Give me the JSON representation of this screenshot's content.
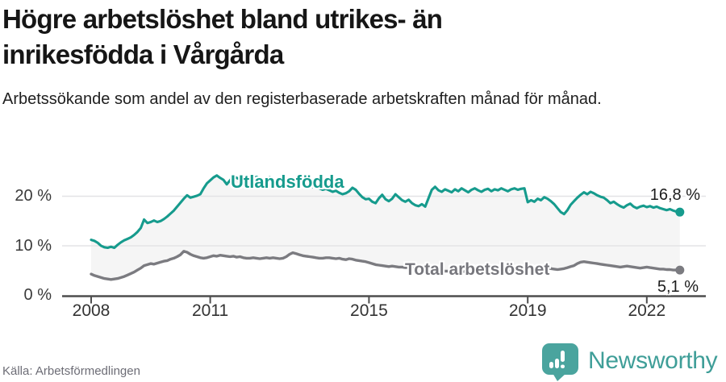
{
  "header": {
    "title_line1": "Högre arbetslöshet bland utrikes- än",
    "title_line2": "inrikesfödda i Vårgårda",
    "subtitle": "Arbetssökande som andel av den registerbaserade arbetskraften månad för månad."
  },
  "footer": {
    "source": "Källa: Arbetsförmedlingen",
    "brand": "Newsworthy"
  },
  "chart_data": {
    "type": "line",
    "title": "Högre arbetslöshet bland utrikes- än inrikesfödda i Vårgårda",
    "subtitle": "Arbetssökande som andel av den registerbaserade arbetskraften månad för månad.",
    "x_start": 2008,
    "x_interval": "month",
    "x_range": [
      "2008-01",
      "2022-11"
    ],
    "ylim": [
      0,
      26
    ],
    "grid": "horizontal",
    "legend_position": "inline-on-lines",
    "y_ticks": [
      {
        "value": 0,
        "label": "0 %"
      },
      {
        "value": 10,
        "label": "10 %"
      },
      {
        "value": 20,
        "label": "20 %"
      }
    ],
    "x_ticks": [
      {
        "value": 2008,
        "label": "2008"
      },
      {
        "value": 2011,
        "label": "2011"
      },
      {
        "value": 2015,
        "label": "2015"
      },
      {
        "value": 2019,
        "label": "2019"
      },
      {
        "value": 2022,
        "label": "2022"
      }
    ],
    "series": [
      {
        "name": "Utlandsfödda",
        "end_value_label": "16,8 %",
        "color": "#169b8d",
        "values": [
          11.2,
          11.0,
          10.6,
          10.0,
          9.7,
          9.6,
          9.8,
          9.6,
          10.2,
          10.7,
          11.1,
          11.4,
          11.7,
          12.2,
          12.8,
          13.6,
          15.3,
          14.6,
          14.8,
          15.1,
          14.8,
          15.0,
          15.4,
          15.9,
          16.5,
          17.1,
          17.9,
          18.7,
          19.5,
          20.2,
          19.7,
          19.9,
          20.1,
          20.4,
          21.6,
          22.6,
          23.2,
          23.8,
          24.2,
          23.7,
          23.3,
          22.4,
          23.2,
          24.0,
          23.7,
          23.4,
          23.6,
          23.3,
          23.4,
          23.6,
          23.9,
          23.5,
          23.2,
          23.6,
          23.8,
          23.5,
          23.1,
          22.8,
          23.0,
          23.2,
          23.0,
          22.7,
          22.9,
          22.5,
          22.2,
          22.4,
          22.0,
          21.8,
          21.9,
          21.6,
          21.3,
          21.5,
          21.2,
          20.9,
          21.1,
          20.7,
          20.4,
          20.6,
          21.0,
          21.7,
          21.3,
          20.5,
          19.8,
          19.4,
          19.5,
          18.9,
          18.6,
          19.6,
          20.3,
          19.4,
          19.0,
          19.5,
          20.4,
          19.8,
          19.2,
          18.9,
          19.3,
          18.6,
          18.2,
          18.0,
          18.4,
          17.9,
          19.6,
          21.3,
          21.9,
          21.2,
          20.9,
          21.4,
          21.1,
          20.8,
          21.4,
          21.0,
          21.6,
          21.2,
          20.8,
          21.3,
          21.6,
          21.2,
          20.9,
          21.3,
          21.5,
          21.0,
          21.4,
          21.2,
          21.6,
          21.3,
          21.0,
          21.4,
          21.6,
          21.3,
          21.5,
          21.6,
          18.8,
          19.2,
          18.9,
          19.5,
          19.2,
          19.8,
          19.5,
          19.0,
          18.4,
          17.6,
          16.8,
          16.4,
          17.2,
          18.3,
          19.0,
          19.7,
          20.3,
          20.8,
          20.4,
          20.9,
          20.6,
          20.2,
          19.9,
          19.7,
          19.2,
          18.6,
          18.9,
          18.4,
          18.0,
          17.7,
          18.2,
          18.5,
          17.9,
          17.6,
          17.9,
          18.1,
          17.8,
          18.0,
          17.7,
          17.9,
          17.6,
          17.4,
          17.2,
          17.4,
          17.1,
          16.9,
          16.8
        ]
      },
      {
        "name": "Total arbetslöshet",
        "end_value_label": "5,1 %",
        "color": "#7b7b80",
        "values": [
          4.3,
          4.0,
          3.8,
          3.6,
          3.4,
          3.3,
          3.2,
          3.3,
          3.4,
          3.6,
          3.8,
          4.1,
          4.4,
          4.7,
          5.1,
          5.5,
          6.0,
          6.2,
          6.4,
          6.3,
          6.5,
          6.7,
          6.9,
          7.0,
          7.3,
          7.5,
          7.8,
          8.2,
          8.9,
          8.7,
          8.3,
          8.0,
          7.8,
          7.6,
          7.5,
          7.6,
          7.8,
          8.0,
          7.9,
          8.1,
          8.0,
          7.9,
          7.8,
          7.9,
          7.7,
          7.8,
          7.6,
          7.5,
          7.5,
          7.6,
          7.5,
          7.4,
          7.5,
          7.6,
          7.5,
          7.6,
          7.5,
          7.4,
          7.5,
          7.8,
          8.3,
          8.6,
          8.4,
          8.2,
          8.0,
          7.9,
          7.8,
          7.7,
          7.6,
          7.5,
          7.5,
          7.6,
          7.6,
          7.5,
          7.4,
          7.5,
          7.3,
          7.2,
          7.4,
          7.3,
          7.1,
          7.0,
          6.9,
          6.8,
          6.6,
          6.4,
          6.2,
          6.1,
          6.0,
          5.9,
          5.8,
          5.9,
          5.8,
          5.7,
          5.7,
          5.6,
          5.6,
          5.5,
          5.4,
          5.4,
          5.3,
          5.2,
          5.2,
          5.1,
          5.1,
          5.0,
          5.0,
          4.9,
          4.9,
          4.9,
          4.8,
          4.8,
          4.9,
          4.8,
          4.7,
          4.8,
          4.9,
          4.8,
          4.9,
          5.0,
          5.0,
          4.9,
          4.8,
          4.9,
          5.0,
          4.9,
          5.0,
          5.1,
          5.0,
          5.1,
          5.2,
          5.3,
          5.3,
          5.4,
          5.3,
          5.4,
          5.5,
          5.4,
          5.5,
          5.4,
          5.3,
          5.2,
          5.3,
          5.4,
          5.6,
          5.8,
          6.0,
          6.4,
          6.7,
          6.8,
          6.7,
          6.6,
          6.5,
          6.4,
          6.3,
          6.2,
          6.1,
          6.0,
          5.9,
          5.8,
          5.7,
          5.8,
          5.9,
          5.8,
          5.7,
          5.6,
          5.5,
          5.6,
          5.7,
          5.6,
          5.5,
          5.4,
          5.3,
          5.3,
          5.2,
          5.2,
          5.1,
          5.1,
          5.1
        ]
      }
    ],
    "colors": {
      "series1": "#169b8d",
      "series2": "#7b7b80",
      "fill": "#f5f5f5",
      "grid": "#e3e3e5",
      "axis": "#4d4d4d",
      "brand": "#3f9e98",
      "brand_bubble": "#4aa49e"
    }
  }
}
